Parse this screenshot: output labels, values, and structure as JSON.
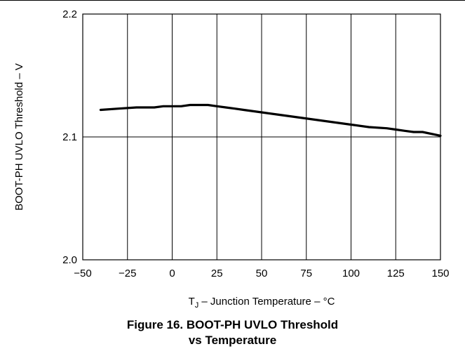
{
  "chart_data": {
    "type": "line",
    "title": "",
    "xlabel_parts": [
      "T",
      "J",
      " – Junction Temperature – °C"
    ],
    "ylabel": "BOOT-PH UVLO Threshold – V",
    "xlim": [
      -50,
      150
    ],
    "ylim": [
      2.0,
      2.2
    ],
    "x_ticks": [
      -50,
      -25,
      0,
      25,
      50,
      75,
      100,
      125,
      150
    ],
    "x_tick_labels": [
      "−50",
      "−25",
      "0",
      "25",
      "50",
      "75",
      "100",
      "125",
      "150"
    ],
    "y_ticks": [
      2.0,
      2.1,
      2.2
    ],
    "y_tick_labels": [
      "2.0",
      "2.1",
      "2.2"
    ],
    "grid": true,
    "series": [
      {
        "x": [
          -40,
          -30,
          -20,
          -10,
          -5,
          0,
          5,
          10,
          15,
          20,
          25,
          30,
          35,
          40,
          50,
          60,
          70,
          80,
          90,
          100,
          110,
          120,
          125,
          130,
          135,
          140,
          150
        ],
        "y": [
          2.122,
          2.123,
          2.124,
          2.124,
          2.125,
          2.125,
          2.125,
          2.126,
          2.126,
          2.126,
          2.125,
          2.124,
          2.123,
          2.122,
          2.12,
          2.118,
          2.116,
          2.114,
          2.112,
          2.11,
          2.108,
          2.107,
          2.106,
          2.105,
          2.104,
          2.104,
          2.101
        ]
      }
    ]
  },
  "caption": {
    "line1": "Figure 16. BOOT-PH UVLO Threshold",
    "line2": "vs Temperature"
  }
}
